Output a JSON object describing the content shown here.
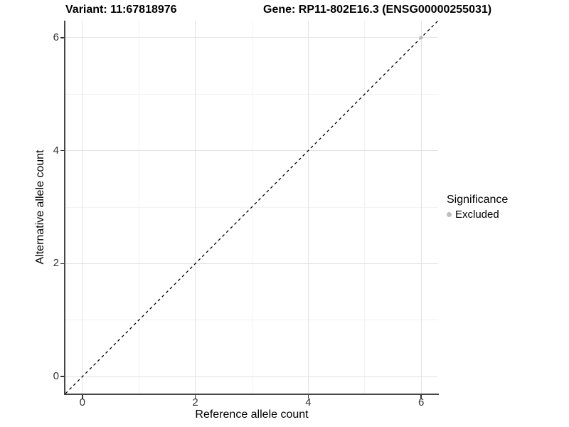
{
  "titles": {
    "variant": "Variant: 11:67818976",
    "gene": "Gene: RP11-802E16.3 (ENSG00000255031)"
  },
  "chart_data": {
    "type": "scatter",
    "title_left": "Variant: 11:67818976",
    "title_right": "Gene: RP11-802E16.3 (ENSG00000255031)",
    "xlabel": "Reference allele count",
    "ylabel": "Alternative allele count",
    "xlim": [
      -0.3,
      6.3
    ],
    "ylim": [
      -0.3,
      6.3
    ],
    "x_major_ticks": [
      0,
      2,
      4,
      6
    ],
    "y_major_ticks": [
      0,
      2,
      4,
      6
    ],
    "x_minor_ticks": [
      1,
      3,
      5
    ],
    "y_minor_ticks": [
      1,
      3,
      5
    ],
    "grid": "on",
    "reference_line": {
      "equation": "y = x",
      "style": "dashed",
      "color": "#000000",
      "from": [
        -0.3,
        -0.3
      ],
      "to": [
        6.3,
        6.3
      ]
    },
    "series": [
      {
        "name": "Excluded",
        "color": "#bebebe",
        "points": [
          {
            "x": 6,
            "y": 6
          }
        ]
      }
    ],
    "legend": {
      "title": "Significance",
      "position": "right",
      "items": [
        {
          "label": "Excluded",
          "color": "#bebebe"
        }
      ]
    }
  },
  "colors": {
    "grid_major": "#e3e3e3",
    "grid_minor": "#f2f2f2",
    "axis_line": "#474747",
    "tick_mark": "#333333",
    "tick_text": "#333333",
    "point": "#bebebe"
  }
}
